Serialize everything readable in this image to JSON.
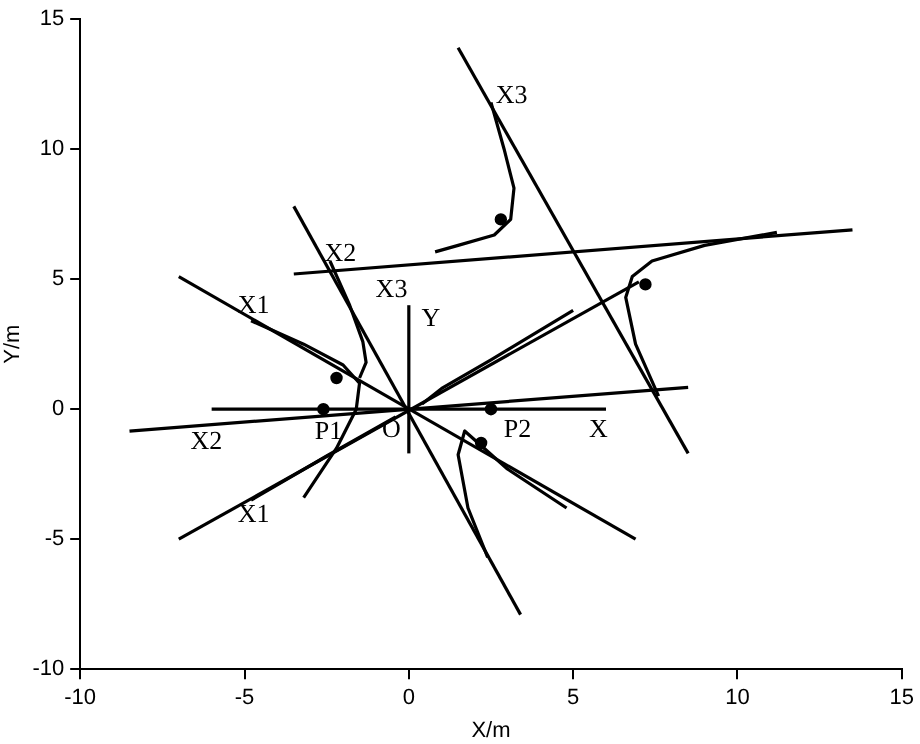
{
  "chart_data": {
    "type": "line",
    "xlabel": "X/m",
    "ylabel": "Y/m",
    "xlim": [
      -10,
      15
    ],
    "ylim": [
      -10,
      15
    ],
    "xticks": [
      -10,
      -5,
      0,
      5,
      10,
      15
    ],
    "yticks": [
      -10,
      -5,
      0,
      5,
      10,
      15
    ],
    "grid": false,
    "legend": false,
    "series": [
      {
        "color": "#000000",
        "x": [
          -7.0,
          6.9
        ],
        "values": [
          5.1,
          -5.0
        ]
      },
      {
        "color": "#000000",
        "x": [
          -7.0,
          7.0
        ],
        "values": [
          -5.0,
          4.9
        ]
      },
      {
        "color": "#000000",
        "x": [
          -8.5,
          8.5
        ],
        "values": [
          -0.84,
          0.84
        ]
      },
      {
        "color": "#000000",
        "x": [
          -3.5,
          13.5
        ],
        "values": [
          5.2,
          6.9
        ]
      },
      {
        "color": "#000000",
        "x": [
          -3.5,
          3.4
        ],
        "values": [
          7.8,
          -7.9
        ]
      },
      {
        "color": "#000000",
        "x": [
          1.5,
          8.5
        ],
        "values": [
          13.9,
          -1.7
        ]
      },
      {
        "color": "#000000",
        "x": [
          -6.0,
          6.0
        ],
        "values": [
          0,
          0
        ]
      },
      {
        "color": "#000000",
        "x": [
          0,
          0
        ],
        "values": [
          -1.7,
          4.0
        ]
      },
      {
        "color": "#000000",
        "x": [
          2.5,
          2.9,
          3.2,
          3.1,
          2.6,
          1.5,
          0.8
        ],
        "values": [
          11.8,
          10.0,
          8.5,
          7.3,
          6.7,
          6.3,
          6.05
        ]
      },
      {
        "color": "#000000",
        "x": [
          11.2,
          9.0,
          7.4,
          6.8,
          6.6,
          6.9,
          7.6
        ],
        "values": [
          6.8,
          6.3,
          5.7,
          5.1,
          4.3,
          2.5,
          0.5
        ]
      },
      {
        "color": "#000000",
        "x": [
          5.0,
          2.5,
          1.0,
          0.4
        ],
        "values": [
          3.8,
          1.9,
          0.8,
          0.2
        ]
      },
      {
        "color": "#000000",
        "x": [
          -4.8,
          -3.2,
          -2.0,
          -1.5,
          -1.6,
          -2.2,
          -3.2
        ],
        "values": [
          3.4,
          2.5,
          1.7,
          1.0,
          0,
          -1.5,
          -3.4
        ]
      },
      {
        "color": "#000000",
        "x": [
          -2.4,
          -1.8,
          -1.4,
          -1.3,
          -1.5
        ],
        "values": [
          5.7,
          4.0,
          2.6,
          1.8,
          1.2
        ]
      },
      {
        "color": "#000000",
        "x": [
          -4.8,
          -2.5,
          -0.4
        ],
        "values": [
          -3.5,
          -1.8,
          -0.3
        ]
      },
      {
        "color": "#000000",
        "x": [
          4.8,
          3.0,
          1.7,
          1.5,
          1.8,
          2.4
        ],
        "values": [
          -3.8,
          -2.3,
          -0.84,
          -1.75,
          -3.8,
          -5.7
        ]
      },
      {
        "type": "scatter",
        "marker": "circle",
        "color": "#000000",
        "x": [
          2.8,
          7.2,
          -2.2,
          -2.6,
          2.2,
          2.5
        ],
        "values": [
          7.3,
          4.8,
          1.2,
          0,
          -1.3,
          0
        ]
      }
    ],
    "annotations": [
      "X1",
      "X1",
      "X2",
      "X2",
      "X3",
      "X3",
      "Y",
      "X",
      "P1",
      "P2",
      "O"
    ]
  }
}
